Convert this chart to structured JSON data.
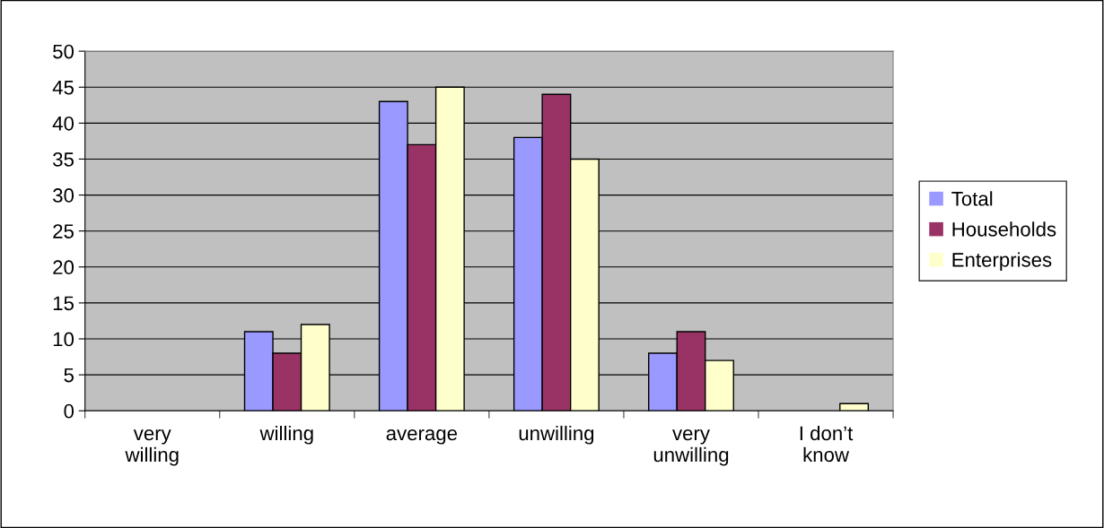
{
  "chart_data": {
    "type": "bar",
    "categories": [
      "very\nwilling",
      "willing",
      "average",
      "unwilling",
      "very\nunwilling",
      "I don’t\nknow"
    ],
    "series": [
      {
        "name": "Total",
        "color": "#9999ff",
        "values": [
          0,
          11,
          43,
          38,
          8,
          0
        ]
      },
      {
        "name": "Households",
        "color": "#993366",
        "values": [
          0,
          8,
          37,
          44,
          11,
          0
        ]
      },
      {
        "name": "Enterprises",
        "color": "#ffffcc",
        "values": [
          0,
          12,
          45,
          35,
          7,
          1
        ]
      }
    ],
    "ylim": [
      0,
      50
    ],
    "yticks": [
      0,
      5,
      10,
      15,
      20,
      25,
      30,
      35,
      40,
      45,
      50
    ],
    "grid": "y",
    "legend": "right"
  }
}
